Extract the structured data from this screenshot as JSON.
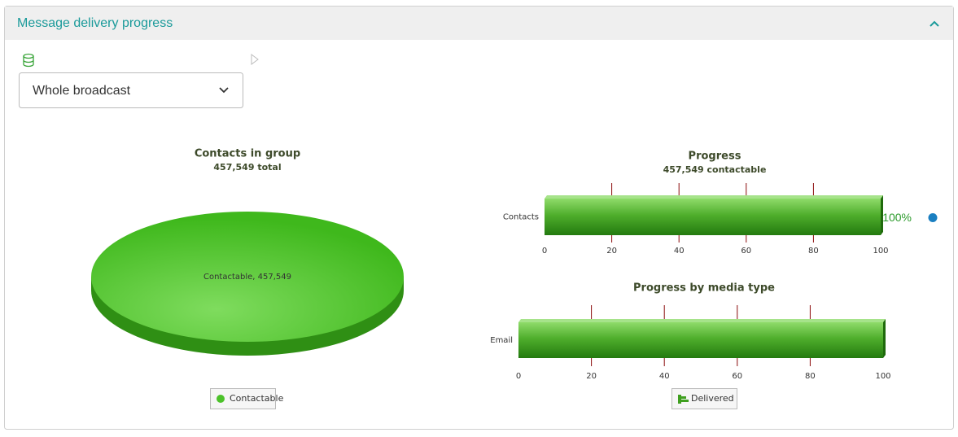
{
  "panel": {
    "title": "Message delivery progress"
  },
  "filter": {
    "selected": "Whole broadcast"
  },
  "chart_data": [
    {
      "type": "pie",
      "title": "Contacts in group",
      "subtitle": "457,549 total",
      "categories": [
        "Contactable"
      ],
      "values": [
        457549
      ],
      "value_labels": [
        "Contactable, 457,549"
      ],
      "colors": [
        "#4cc22a"
      ],
      "legend": true
    },
    {
      "type": "bar",
      "orientation": "horizontal",
      "title": "Progress",
      "subtitle": "457,549 contactable",
      "categories": [
        "Contacts"
      ],
      "values": [
        100
      ],
      "value_labels": [
        "100%"
      ],
      "color": "#3f9f1f",
      "xlim": [
        0,
        100
      ],
      "xticks": [
        0,
        20,
        40,
        60,
        80,
        100
      ],
      "grid": true
    },
    {
      "type": "bar",
      "orientation": "horizontal",
      "title": "Progress by media type",
      "categories": [
        "Email"
      ],
      "series": [
        {
          "name": "Delivered",
          "color": "#3f9f1f",
          "values": [
            100
          ]
        }
      ],
      "xlim": [
        0,
        100
      ],
      "xticks": [
        0,
        20,
        40,
        60,
        80,
        100
      ],
      "grid": true,
      "legend": true
    }
  ]
}
